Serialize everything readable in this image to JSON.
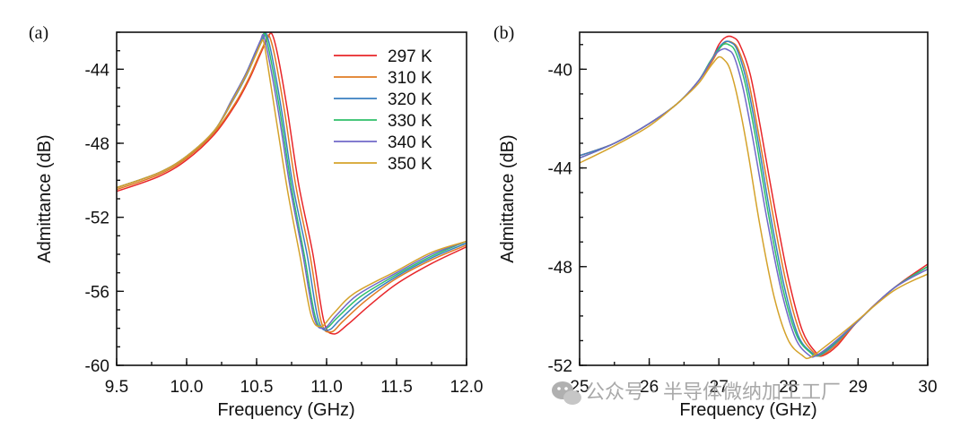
{
  "chart_data": [
    {
      "panel": "(a)",
      "type": "line",
      "xlabel": "Frequency (GHz)",
      "ylabel": "Admittance (dB)",
      "xlim": [
        9.5,
        12.0
      ],
      "ylim": [
        -60,
        -42
      ],
      "xticks": [
        9.5,
        10.0,
        10.5,
        11.0,
        11.5,
        12.0
      ],
      "xtick_labels": [
        "9.5",
        "10.0",
        "10.5",
        "11.0",
        "11.5",
        "12.0"
      ],
      "yticks": [
        -60,
        -56,
        -52,
        -48,
        -44
      ],
      "ytick_labels": [
        "-60",
        "-56",
        "-52",
        "-48",
        "-44"
      ],
      "grid": false,
      "legend_position": "top-right",
      "series": [
        {
          "name": "297 K",
          "color": "#e8262a",
          "x": [
            9.5,
            9.8,
            10.0,
            10.2,
            10.35,
            10.45,
            10.52,
            10.58,
            10.61,
            10.65,
            10.72,
            10.8,
            10.9,
            10.98,
            11.05,
            11.15,
            11.3,
            11.5,
            11.75,
            12.0
          ],
          "y": [
            -50.6,
            -49.8,
            -48.9,
            -47.5,
            -45.9,
            -44.5,
            -43.3,
            -42.3,
            -42.1,
            -43.2,
            -46.2,
            -50.2,
            -53.9,
            -57.6,
            -58.3,
            -57.8,
            -56.8,
            -55.6,
            -54.5,
            -53.6
          ]
        },
        {
          "name": "310 K",
          "color": "#e07b22",
          "x": [
            9.5,
            9.8,
            10.0,
            10.2,
            10.35,
            10.45,
            10.52,
            10.57,
            10.59,
            10.63,
            10.7,
            10.78,
            10.88,
            10.96,
            11.03,
            11.12,
            11.28,
            11.5,
            11.75,
            12.0
          ],
          "y": [
            -50.5,
            -49.7,
            -48.8,
            -47.4,
            -45.8,
            -44.4,
            -43.2,
            -42.4,
            -42.2,
            -43.3,
            -46.3,
            -50.3,
            -54.0,
            -57.6,
            -58.2,
            -57.6,
            -56.5,
            -55.3,
            -54.3,
            -53.5
          ]
        },
        {
          "name": "320 K",
          "color": "#3a7fc1",
          "x": [
            9.5,
            9.8,
            10.0,
            10.2,
            10.33,
            10.43,
            10.5,
            10.55,
            10.57,
            10.61,
            10.68,
            10.76,
            10.86,
            10.94,
            11.01,
            11.1,
            11.26,
            11.5,
            11.75,
            12.0
          ],
          "y": [
            -50.4,
            -49.6,
            -48.7,
            -47.3,
            -45.7,
            -44.3,
            -43.1,
            -42.3,
            -42.1,
            -43.3,
            -46.3,
            -50.3,
            -54.0,
            -57.5,
            -58.1,
            -57.5,
            -56.4,
            -55.2,
            -54.2,
            -53.4
          ]
        },
        {
          "name": "330 K",
          "color": "#2fbf6a",
          "x": [
            9.5,
            9.8,
            10.0,
            10.2,
            10.32,
            10.42,
            10.49,
            10.54,
            10.56,
            10.6,
            10.67,
            10.75,
            10.84,
            10.92,
            10.99,
            11.08,
            11.24,
            11.5,
            11.75,
            12.0
          ],
          "y": [
            -50.4,
            -49.6,
            -48.7,
            -47.3,
            -45.7,
            -44.3,
            -43.1,
            -42.3,
            -42.1,
            -43.4,
            -46.4,
            -50.4,
            -54.0,
            -57.4,
            -58.0,
            -57.4,
            -56.3,
            -55.1,
            -54.1,
            -53.3
          ]
        },
        {
          "name": "340 K",
          "color": "#7068c8",
          "x": [
            9.5,
            9.8,
            10.0,
            10.2,
            10.32,
            10.42,
            10.49,
            10.53,
            10.55,
            10.59,
            10.66,
            10.74,
            10.83,
            10.91,
            10.98,
            11.07,
            11.22,
            11.5,
            11.75,
            12.0
          ],
          "y": [
            -50.4,
            -49.6,
            -48.7,
            -47.3,
            -45.7,
            -44.3,
            -43.1,
            -42.4,
            -42.2,
            -43.5,
            -46.5,
            -50.4,
            -54.0,
            -57.4,
            -58.0,
            -57.3,
            -56.2,
            -55.0,
            -54.0,
            -53.3
          ]
        },
        {
          "name": "350 K",
          "color": "#d4a22a",
          "x": [
            9.5,
            9.8,
            10.0,
            10.2,
            10.32,
            10.42,
            10.49,
            10.53,
            10.55,
            10.58,
            10.64,
            10.72,
            10.81,
            10.89,
            10.96,
            11.05,
            11.2,
            11.5,
            11.75,
            12.0
          ],
          "y": [
            -50.4,
            -49.6,
            -48.7,
            -47.3,
            -45.8,
            -44.4,
            -43.3,
            -42.6,
            -42.5,
            -43.8,
            -46.7,
            -50.5,
            -54.1,
            -57.3,
            -57.9,
            -57.2,
            -56.1,
            -54.9,
            -53.9,
            -53.3
          ]
        }
      ]
    },
    {
      "panel": "(b)",
      "type": "line",
      "xlabel": "Frequency (GHz)",
      "ylabel": "Admittance (dB)",
      "xlim": [
        25,
        30
      ],
      "ylim": [
        -52,
        -38.5
      ],
      "xticks": [
        25,
        26,
        27,
        28,
        29,
        30
      ],
      "xtick_labels": [
        "25",
        "26",
        "27",
        "28",
        "29",
        "30"
      ],
      "yticks": [
        -52,
        -48,
        -44,
        -40
      ],
      "ytick_labels": [
        "-52",
        "-48",
        "-44",
        "-40"
      ],
      "grid": false,
      "series": [
        {
          "name": "297 K",
          "color": "#e8262a",
          "x": [
            25,
            25.5,
            26,
            26.4,
            26.7,
            26.9,
            27.0,
            27.1,
            27.2,
            27.3,
            27.45,
            27.6,
            27.8,
            28.0,
            28.2,
            28.4,
            28.5,
            28.7,
            29.0,
            29.5,
            30.0
          ],
          "y": [
            -43.5,
            -43.0,
            -42.2,
            -41.4,
            -40.5,
            -39.6,
            -39.0,
            -38.7,
            -38.7,
            -39.0,
            -40.2,
            -42.4,
            -45.6,
            -48.5,
            -50.6,
            -51.5,
            -51.6,
            -51.2,
            -50.2,
            -48.9,
            -47.9
          ]
        },
        {
          "name": "310 K",
          "color": "#e07b22",
          "x": [
            25,
            25.5,
            26,
            26.4,
            26.7,
            26.9,
            27.0,
            27.1,
            27.18,
            27.28,
            27.42,
            27.57,
            27.77,
            27.97,
            28.17,
            28.37,
            28.47,
            28.67,
            29.0,
            29.5,
            30.0
          ],
          "y": [
            -43.5,
            -43.0,
            -42.2,
            -41.4,
            -40.5,
            -39.7,
            -39.2,
            -38.9,
            -38.9,
            -39.2,
            -40.4,
            -42.6,
            -45.8,
            -48.7,
            -50.7,
            -51.5,
            -51.6,
            -51.2,
            -50.2,
            -48.9,
            -48.0
          ]
        },
        {
          "name": "320 K",
          "color": "#3a7fc1",
          "x": [
            25,
            25.5,
            26,
            26.4,
            26.7,
            26.88,
            26.98,
            27.08,
            27.16,
            27.26,
            27.4,
            27.55,
            27.74,
            27.94,
            28.14,
            28.34,
            28.44,
            28.64,
            29.0,
            29.5,
            30.0
          ],
          "y": [
            -43.5,
            -43.0,
            -42.2,
            -41.4,
            -40.5,
            -39.7,
            -39.2,
            -38.9,
            -38.9,
            -39.2,
            -40.5,
            -42.7,
            -45.9,
            -48.8,
            -50.8,
            -51.5,
            -51.6,
            -51.2,
            -50.2,
            -48.9,
            -48.0
          ]
        },
        {
          "name": "330 K",
          "color": "#2fbf6a",
          "x": [
            25,
            25.5,
            26,
            26.4,
            26.7,
            26.87,
            26.97,
            27.06,
            27.14,
            27.24,
            27.38,
            27.53,
            27.72,
            27.92,
            28.12,
            28.32,
            28.42,
            28.62,
            29.0,
            29.5,
            30.0
          ],
          "y": [
            -43.6,
            -43.0,
            -42.2,
            -41.4,
            -40.5,
            -39.7,
            -39.3,
            -39.0,
            -39.0,
            -39.3,
            -40.6,
            -42.8,
            -46.0,
            -48.9,
            -50.8,
            -51.5,
            -51.6,
            -51.2,
            -50.2,
            -48.9,
            -48.0
          ]
        },
        {
          "name": "340 K",
          "color": "#7068c8",
          "x": [
            25,
            25.5,
            26,
            26.4,
            26.7,
            26.86,
            26.95,
            27.04,
            27.12,
            27.22,
            27.35,
            27.5,
            27.7,
            27.9,
            28.1,
            28.3,
            28.4,
            28.6,
            29.0,
            29.5,
            30.0
          ],
          "y": [
            -43.6,
            -43.0,
            -42.2,
            -41.4,
            -40.5,
            -39.8,
            -39.4,
            -39.2,
            -39.2,
            -39.5,
            -40.8,
            -43.0,
            -46.2,
            -49.0,
            -50.9,
            -51.6,
            -51.6,
            -51.2,
            -50.2,
            -48.9,
            -48.1
          ]
        },
        {
          "name": "350 K",
          "color": "#d4a22a",
          "x": [
            25,
            25.5,
            26,
            26.4,
            26.7,
            26.85,
            26.93,
            27.0,
            27.07,
            27.16,
            27.28,
            27.42,
            27.6,
            27.8,
            28.0,
            28.2,
            28.3,
            28.5,
            28.9,
            29.5,
            30.0
          ],
          "y": [
            -43.8,
            -43.1,
            -42.3,
            -41.4,
            -40.6,
            -40.0,
            -39.7,
            -39.5,
            -39.6,
            -40.0,
            -41.3,
            -43.4,
            -46.5,
            -49.3,
            -51.0,
            -51.6,
            -51.7,
            -51.3,
            -50.4,
            -49.0,
            -48.3
          ]
        }
      ]
    }
  ],
  "watermark": {
    "icon": "wechat-icon",
    "text": "公众号 · 半导体微纳加工工厂"
  }
}
